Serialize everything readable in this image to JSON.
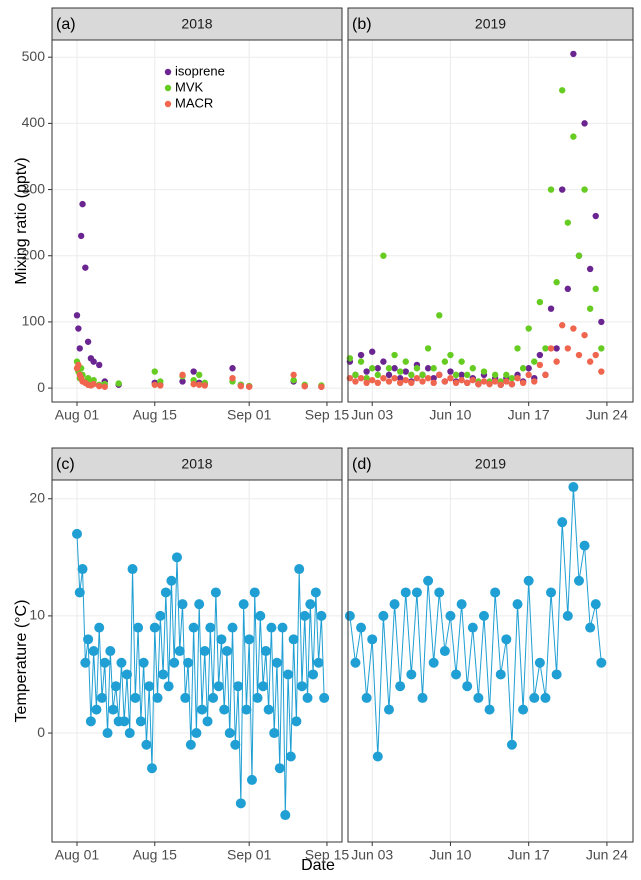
{
  "x_label": "Date",
  "chart_data": [
    {
      "type": "scatter",
      "panel_label": "(a)",
      "strip": "2018",
      "y_label": "Mixing ratio (pptv)",
      "legend": "top-left",
      "xlim": [
        "2018-07-27T12:00",
        "2018-09-17T17:00"
      ],
      "xticks": [
        {
          "value": "2018-08-01",
          "label": "Aug 01"
        },
        {
          "value": "2018-08-15",
          "label": "Aug 15"
        },
        {
          "value": "2018-09-01",
          "label": "Sep 01"
        },
        {
          "value": "2018-09-15",
          "label": "Sep 15"
        }
      ],
      "ylim": [
        -21,
        526
      ],
      "yticks": [
        0,
        100,
        200,
        300,
        400,
        500
      ],
      "grid": true,
      "x": [
        "2018-08-01T00:00",
        "2018-08-01T06:00",
        "2018-08-01T12:00",
        "2018-08-01T18:00",
        "2018-08-02T00:00",
        "2018-08-02T12:00",
        "2018-08-03T00:00",
        "2018-08-03T12:00",
        "2018-08-04T00:00",
        "2018-08-05T00:00",
        "2018-08-06T00:00",
        "2018-08-08T12:00",
        "2018-08-15T00:00",
        "2018-08-16T00:00",
        "2018-08-20T00:00",
        "2018-08-22T00:00",
        "2018-08-23T00:00",
        "2018-08-24T00:00",
        "2018-08-29T00:00",
        "2018-08-30T12:00",
        "2018-09-01T00:00",
        "2018-09-09T00:00",
        "2018-09-11T00:00",
        "2018-09-14T00:00"
      ],
      "series": [
        {
          "name": "isoprene",
          "color": "#6a2591",
          "values": [
            110,
            90,
            60,
            230,
            278,
            182,
            70,
            45,
            40,
            35,
            10,
            5,
            8,
            5,
            10,
            25,
            8,
            6,
            30,
            5,
            3,
            10,
            3,
            2
          ]
        },
        {
          "name": "MVK",
          "color": "#66cc22",
          "values": [
            40,
            25,
            15,
            30,
            20,
            10,
            15,
            8,
            12,
            5,
            6,
            7,
            25,
            10,
            18,
            12,
            20,
            8,
            10,
            5,
            3,
            12,
            5,
            4
          ]
        },
        {
          "name": "MACR",
          "color": "#f0654e",
          "values": [
            30,
            35,
            20,
            15,
            10,
            8,
            5,
            4,
            6,
            3,
            2,
            null,
            5,
            4,
            20,
            6,
            5,
            4,
            15,
            3,
            2,
            20,
            3,
            2
          ]
        }
      ]
    },
    {
      "type": "scatter",
      "panel_label": "(b)",
      "strip": "2019",
      "xlim": [
        "2019-05-31T20:00",
        "2019-06-26T08:00"
      ],
      "xticks": [
        {
          "value": "2019-06-03",
          "label": "Jun 03"
        },
        {
          "value": "2019-06-10",
          "label": "Jun 10"
        },
        {
          "value": "2019-06-17",
          "label": "Jun 17"
        },
        {
          "value": "2019-06-24",
          "label": "Jun 24"
        }
      ],
      "ylim": [
        -21,
        526
      ],
      "grid": true,
      "x": [
        "2019-06-01T00:00",
        "2019-06-01T12:00",
        "2019-06-02T00:00",
        "2019-06-02T12:00",
        "2019-06-03T00:00",
        "2019-06-03T12:00",
        "2019-06-04T00:00",
        "2019-06-04T12:00",
        "2019-06-05T00:00",
        "2019-06-05T12:00",
        "2019-06-06T00:00",
        "2019-06-06T12:00",
        "2019-06-07T00:00",
        "2019-06-07T12:00",
        "2019-06-08T00:00",
        "2019-06-08T12:00",
        "2019-06-09T00:00",
        "2019-06-09T12:00",
        "2019-06-10T00:00",
        "2019-06-10T12:00",
        "2019-06-11T00:00",
        "2019-06-11T12:00",
        "2019-06-12T00:00",
        "2019-06-12T12:00",
        "2019-06-13T00:00",
        "2019-06-13T12:00",
        "2019-06-14T00:00",
        "2019-06-14T12:00",
        "2019-06-15T00:00",
        "2019-06-15T12:00",
        "2019-06-16T00:00",
        "2019-06-16T12:00",
        "2019-06-17T00:00",
        "2019-06-17T12:00",
        "2019-06-18T00:00",
        "2019-06-18T12:00",
        "2019-06-19T00:00",
        "2019-06-19T12:00",
        "2019-06-20T00:00",
        "2019-06-20T12:00",
        "2019-06-21T00:00",
        "2019-06-21T12:00",
        "2019-06-22T00:00",
        "2019-06-22T12:00",
        "2019-06-23T00:00",
        "2019-06-23T12:00"
      ],
      "series": [
        {
          "name": "isoprene",
          "color": "#6a2591",
          "values": [
            40,
            20,
            50,
            25,
            55,
            30,
            40,
            20,
            30,
            15,
            25,
            10,
            35,
            20,
            30,
            15,
            20,
            10,
            25,
            10,
            20,
            8,
            15,
            6,
            20,
            8,
            15,
            5,
            15,
            6,
            20,
            10,
            30,
            15,
            50,
            20,
            120,
            60,
            300,
            150,
            505,
            200,
            400,
            180,
            260,
            100
          ]
        },
        {
          "name": "MVK",
          "color": "#66cc22",
          "values": [
            45,
            20,
            40,
            15,
            30,
            20,
            200,
            30,
            50,
            25,
            40,
            20,
            30,
            20,
            60,
            30,
            110,
            40,
            50,
            20,
            40,
            20,
            30,
            10,
            25,
            10,
            20,
            10,
            20,
            15,
            60,
            30,
            90,
            40,
            130,
            60,
            300,
            160,
            450,
            250,
            380,
            200,
            300,
            120,
            150,
            60
          ]
        },
        {
          "name": "MACR",
          "color": "#f0654e",
          "values": [
            15,
            10,
            15,
            8,
            12,
            8,
            15,
            10,
            15,
            8,
            12,
            8,
            15,
            10,
            15,
            8,
            20,
            10,
            15,
            8,
            12,
            8,
            12,
            6,
            10,
            6,
            10,
            5,
            10,
            6,
            15,
            8,
            20,
            10,
            35,
            20,
            60,
            40,
            95,
            60,
            90,
            50,
            80,
            40,
            50,
            25
          ]
        }
      ]
    },
    {
      "type": "line",
      "panel_label": "(c)",
      "strip": "2018",
      "y_label": "Temperature (°C)",
      "xlim": [
        "2018-07-27T12:00",
        "2018-09-17T17:00"
      ],
      "xticks": [
        {
          "value": "2018-08-01",
          "label": "Aug 01"
        },
        {
          "value": "2018-08-15",
          "label": "Aug 15"
        },
        {
          "value": "2018-09-01",
          "label": "Sep 01"
        },
        {
          "value": "2018-09-15",
          "label": "Sep 15"
        }
      ],
      "ylim": [
        -9.3,
        21.6
      ],
      "yticks": [
        0,
        10,
        20
      ],
      "grid": true,
      "x": [
        "2018-08-01T00:00",
        "2018-08-01T12:00",
        "2018-08-02T00:00",
        "2018-08-02T12:00",
        "2018-08-03T00:00",
        "2018-08-03T12:00",
        "2018-08-04T00:00",
        "2018-08-04T12:00",
        "2018-08-05T00:00",
        "2018-08-05T12:00",
        "2018-08-06T00:00",
        "2018-08-06T12:00",
        "2018-08-07T00:00",
        "2018-08-07T12:00",
        "2018-08-08T00:00",
        "2018-08-08T12:00",
        "2018-08-09T00:00",
        "2018-08-09T12:00",
        "2018-08-10T00:00",
        "2018-08-10T12:00",
        "2018-08-11T00:00",
        "2018-08-11T12:00",
        "2018-08-12T00:00",
        "2018-08-12T12:00",
        "2018-08-13T00:00",
        "2018-08-13T12:00",
        "2018-08-14T00:00",
        "2018-08-14T12:00",
        "2018-08-15T00:00",
        "2018-08-15T12:00",
        "2018-08-16T00:00",
        "2018-08-16T12:00",
        "2018-08-17T00:00",
        "2018-08-17T12:00",
        "2018-08-18T00:00",
        "2018-08-18T12:00",
        "2018-08-19T00:00",
        "2018-08-19T12:00",
        "2018-08-20T00:00",
        "2018-08-20T12:00",
        "2018-08-21T00:00",
        "2018-08-21T12:00",
        "2018-08-22T00:00",
        "2018-08-22T12:00",
        "2018-08-23T00:00",
        "2018-08-23T12:00",
        "2018-08-24T00:00",
        "2018-08-24T12:00",
        "2018-08-25T00:00",
        "2018-08-25T12:00",
        "2018-08-26T00:00",
        "2018-08-26T12:00",
        "2018-08-27T00:00",
        "2018-08-27T12:00",
        "2018-08-28T00:00",
        "2018-08-28T12:00",
        "2018-08-29T00:00",
        "2018-08-29T12:00",
        "2018-08-30T00:00",
        "2018-08-30T12:00",
        "2018-08-31T00:00",
        "2018-08-31T12:00",
        "2018-09-01T00:00",
        "2018-09-01T12:00",
        "2018-09-02T00:00",
        "2018-09-02T12:00",
        "2018-09-03T00:00",
        "2018-09-03T12:00",
        "2018-09-04T00:00",
        "2018-09-04T12:00",
        "2018-09-05T00:00",
        "2018-09-05T12:00",
        "2018-09-06T00:00",
        "2018-09-06T12:00",
        "2018-09-07T00:00",
        "2018-09-07T12:00",
        "2018-09-08T00:00",
        "2018-09-08T12:00",
        "2018-09-09T00:00",
        "2018-09-09T12:00",
        "2018-09-10T00:00",
        "2018-09-10T12:00",
        "2018-09-11T00:00",
        "2018-09-11T12:00",
        "2018-09-12T00:00",
        "2018-09-12T12:00",
        "2018-09-13T00:00",
        "2018-09-13T12:00",
        "2018-09-14T00:00",
        "2018-09-14T12:00"
      ],
      "series": [
        {
          "name": "temperature",
          "color": "#1f9fd3",
          "values": [
            17,
            12,
            14,
            6,
            8,
            1,
            7,
            2,
            9,
            3,
            6,
            0,
            7,
            2,
            4,
            1,
            6,
            1,
            5,
            0,
            14,
            3,
            9,
            1,
            6,
            -1,
            4,
            -3,
            9,
            3,
            10,
            5,
            12,
            4,
            13,
            6,
            15,
            7,
            11,
            3,
            6,
            -1,
            9,
            0,
            11,
            2,
            7,
            1,
            9,
            3,
            12,
            4,
            8,
            2,
            7,
            0,
            9,
            -1,
            4,
            -6,
            11,
            2,
            8,
            -4,
            12,
            3,
            10,
            4,
            7,
            2,
            9,
            0,
            6,
            -3,
            9,
            -7,
            5,
            -2,
            8,
            1,
            14,
            4,
            10,
            3,
            11,
            5,
            12,
            6,
            10,
            3
          ]
        }
      ]
    },
    {
      "type": "line",
      "panel_label": "(d)",
      "strip": "2019",
      "xlim": [
        "2019-05-31T20:00",
        "2019-06-26T08:00"
      ],
      "xticks": [
        {
          "value": "2019-06-03",
          "label": "Jun 03"
        },
        {
          "value": "2019-06-10",
          "label": "Jun 10"
        },
        {
          "value": "2019-06-17",
          "label": "Jun 17"
        },
        {
          "value": "2019-06-24",
          "label": "Jun 24"
        }
      ],
      "ylim": [
        -9.3,
        21.6
      ],
      "grid": true,
      "x": [
        "2019-06-01T00:00",
        "2019-06-01T12:00",
        "2019-06-02T00:00",
        "2019-06-02T12:00",
        "2019-06-03T00:00",
        "2019-06-03T12:00",
        "2019-06-04T00:00",
        "2019-06-04T12:00",
        "2019-06-05T00:00",
        "2019-06-05T12:00",
        "2019-06-06T00:00",
        "2019-06-06T12:00",
        "2019-06-07T00:00",
        "2019-06-07T12:00",
        "2019-06-08T00:00",
        "2019-06-08T12:00",
        "2019-06-09T00:00",
        "2019-06-09T12:00",
        "2019-06-10T00:00",
        "2019-06-10T12:00",
        "2019-06-11T00:00",
        "2019-06-11T12:00",
        "2019-06-12T00:00",
        "2019-06-12T12:00",
        "2019-06-13T00:00",
        "2019-06-13T12:00",
        "2019-06-14T00:00",
        "2019-06-14T12:00",
        "2019-06-15T00:00",
        "2019-06-15T12:00",
        "2019-06-16T00:00",
        "2019-06-16T12:00",
        "2019-06-17T00:00",
        "2019-06-17T12:00",
        "2019-06-18T00:00",
        "2019-06-18T12:00",
        "2019-06-19T00:00",
        "2019-06-19T12:00",
        "2019-06-20T00:00",
        "2019-06-20T12:00",
        "2019-06-21T00:00",
        "2019-06-21T12:00",
        "2019-06-22T00:00",
        "2019-06-22T12:00",
        "2019-06-23T00:00",
        "2019-06-23T12:00"
      ],
      "series": [
        {
          "name": "temperature",
          "color": "#1f9fd3",
          "values": [
            10,
            6,
            9,
            3,
            8,
            -2,
            10,
            2,
            11,
            4,
            12,
            5,
            12,
            3,
            13,
            6,
            12,
            7,
            10,
            5,
            11,
            4,
            9,
            3,
            10,
            2,
            12,
            5,
            8,
            -1,
            11,
            2,
            13,
            3,
            6,
            3,
            12,
            5,
            18,
            10,
            21,
            13,
            16,
            9,
            11,
            6
          ]
        }
      ]
    }
  ]
}
